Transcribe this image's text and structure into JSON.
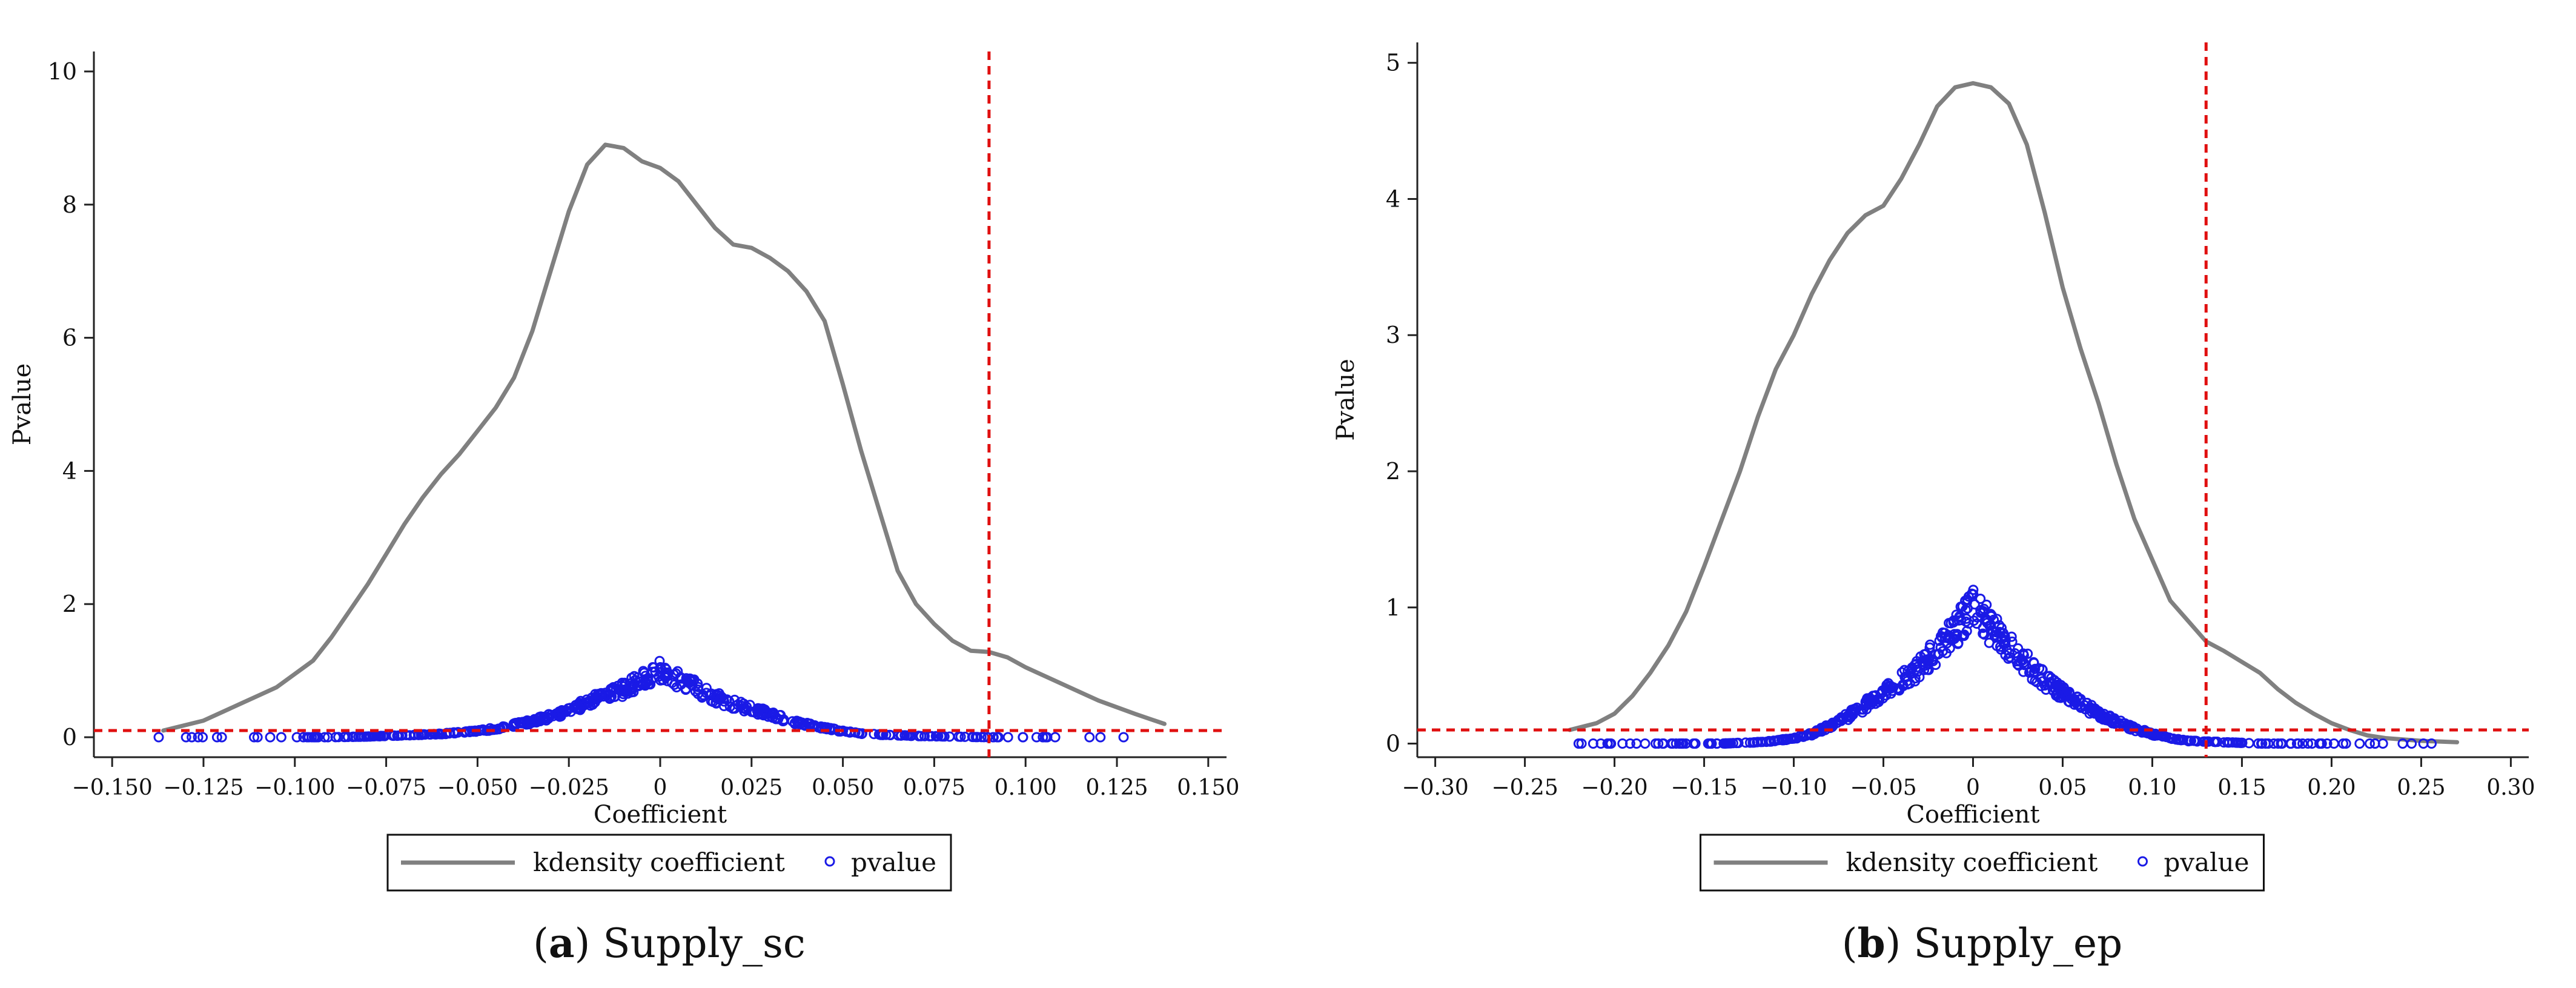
{
  "chart_data": [
    {
      "type": "line+scatter",
      "panel_letter": "a",
      "panel_name": " Supply_sc",
      "xlabel": "Coefficient",
      "ylabel": "Pvalue",
      "xlim": [
        -0.155,
        0.155
      ],
      "ylim": [
        -0.3,
        10.3
      ],
      "x_ticks": [
        -0.15,
        -0.125,
        -0.1,
        -0.075,
        -0.05,
        -0.025,
        0,
        0.025,
        0.05,
        0.075,
        0.1,
        0.125,
        0.15
      ],
      "x_tick_labels": [
        "−0.150",
        "−0.125",
        "−0.100",
        "−0.075",
        "−0.050",
        "−0.025",
        "0",
        "0.025",
        "0.050",
        "0.075",
        "0.100",
        "0.125",
        "0.150"
      ],
      "y_ticks": [
        0,
        2,
        4,
        6,
        8,
        10
      ],
      "y_tick_labels": [
        "0",
        "2",
        "4",
        "6",
        "8",
        "10"
      ],
      "ref_vline_x": 0.09,
      "ref_hline_y": 0.1,
      "kdensity": {
        "x": [
          -0.136,
          -0.125,
          -0.115,
          -0.105,
          -0.1,
          -0.095,
          -0.09,
          -0.085,
          -0.08,
          -0.075,
          -0.07,
          -0.065,
          -0.06,
          -0.055,
          -0.05,
          -0.045,
          -0.04,
          -0.035,
          -0.03,
          -0.025,
          -0.02,
          -0.015,
          -0.01,
          -0.005,
          0,
          0.005,
          0.01,
          0.015,
          0.02,
          0.025,
          0.03,
          0.035,
          0.04,
          0.045,
          0.05,
          0.055,
          0.06,
          0.065,
          0.07,
          0.075,
          0.08,
          0.085,
          0.09,
          0.095,
          0.1,
          0.11,
          0.12,
          0.13,
          0.138
        ],
        "y": [
          0.1,
          0.25,
          0.5,
          0.75,
          0.95,
          1.15,
          1.5,
          1.9,
          2.3,
          2.75,
          3.2,
          3.6,
          3.95,
          4.25,
          4.6,
          4.95,
          5.4,
          6.1,
          7.0,
          7.9,
          8.6,
          8.9,
          8.85,
          8.65,
          8.55,
          8.35,
          8.0,
          7.65,
          7.4,
          7.35,
          7.2,
          7.0,
          6.7,
          6.25,
          5.3,
          4.3,
          3.4,
          2.5,
          2.0,
          1.7,
          1.45,
          1.3,
          1.28,
          1.2,
          1.05,
          0.8,
          0.55,
          0.35,
          0.2
        ]
      },
      "pvalue_fit": {
        "x": [
          -0.138,
          -0.115,
          -0.1,
          -0.09,
          -0.08,
          -0.075,
          -0.07,
          -0.065,
          -0.06,
          -0.055,
          -0.05,
          -0.045,
          -0.04,
          -0.035,
          -0.03,
          -0.025,
          -0.02,
          -0.015,
          -0.01,
          -0.005,
          0,
          0.005,
          0.01,
          0.015,
          0.02,
          0.025,
          0.03,
          0.035,
          0.04,
          0.045,
          0.05,
          0.055,
          0.06,
          0.065,
          0.07,
          0.08,
          0.09,
          0.1,
          0.115,
          0.138
        ],
        "y": [
          0,
          0,
          0,
          0,
          0.01,
          0.02,
          0.03,
          0.04,
          0.05,
          0.07,
          0.09,
          0.13,
          0.18,
          0.24,
          0.31,
          0.4,
          0.52,
          0.62,
          0.72,
          0.86,
          1.0,
          0.86,
          0.74,
          0.6,
          0.5,
          0.43,
          0.34,
          0.26,
          0.19,
          0.14,
          0.09,
          0.06,
          0.04,
          0.03,
          0.02,
          0.01,
          0,
          0,
          0,
          0
        ]
      },
      "legend": {
        "line_label": "kdensity coefficient",
        "marker_label": "pvalue"
      },
      "caption": {
        "letter": "a",
        "text": " Supply_sc"
      }
    },
    {
      "type": "line+scatter",
      "panel_letter": "b",
      "panel_name": " Supply_ep",
      "xlabel": "Coefficient",
      "ylabel": "Pvalue",
      "xlim": [
        -0.31,
        0.31
      ],
      "ylim": [
        -0.1,
        5.15
      ],
      "x_ticks": [
        -0.3,
        -0.25,
        -0.2,
        -0.15,
        -0.1,
        -0.05,
        0,
        0.05,
        0.1,
        0.15,
        0.2,
        0.25,
        0.3
      ],
      "x_tick_labels": [
        "−0.30",
        "−0.25",
        "−0.20",
        "−0.15",
        "−0.10",
        "−0.05",
        "0",
        "0.05",
        "0.10",
        "0.15",
        "0.20",
        "0.25",
        "0.30"
      ],
      "y_ticks": [
        0,
        1,
        2,
        3,
        4,
        5
      ],
      "y_tick_labels": [
        "0",
        "1",
        "2",
        "3",
        "4",
        "5"
      ],
      "ref_vline_x": 0.13,
      "ref_hline_y": 0.1,
      "kdensity": {
        "x": [
          -0.225,
          -0.21,
          -0.2,
          -0.19,
          -0.18,
          -0.17,
          -0.16,
          -0.15,
          -0.14,
          -0.13,
          -0.12,
          -0.11,
          -0.1,
          -0.09,
          -0.08,
          -0.07,
          -0.06,
          -0.05,
          -0.04,
          -0.03,
          -0.02,
          -0.01,
          0,
          0.01,
          0.02,
          0.03,
          0.04,
          0.05,
          0.06,
          0.07,
          0.08,
          0.09,
          0.1,
          0.11,
          0.12,
          0.13,
          0.14,
          0.15,
          0.16,
          0.17,
          0.18,
          0.19,
          0.2,
          0.21,
          0.22,
          0.23,
          0.25,
          0.27
        ],
        "y": [
          0.1,
          0.15,
          0.22,
          0.35,
          0.52,
          0.72,
          0.97,
          1.3,
          1.65,
          2.0,
          2.4,
          2.75,
          3.0,
          3.3,
          3.55,
          3.75,
          3.88,
          3.95,
          4.15,
          4.4,
          4.68,
          4.82,
          4.85,
          4.82,
          4.7,
          4.4,
          3.9,
          3.35,
          2.9,
          2.5,
          2.05,
          1.65,
          1.35,
          1.05,
          0.9,
          0.75,
          0.68,
          0.6,
          0.52,
          0.4,
          0.3,
          0.22,
          0.15,
          0.1,
          0.06,
          0.04,
          0.02,
          0.01
        ]
      },
      "pvalue_fit": {
        "x": [
          -0.22,
          -0.2,
          -0.16,
          -0.14,
          -0.12,
          -0.11,
          -0.1,
          -0.09,
          -0.08,
          -0.07,
          -0.06,
          -0.05,
          -0.04,
          -0.03,
          -0.02,
          -0.01,
          0,
          0.01,
          0.02,
          0.03,
          0.04,
          0.05,
          0.06,
          0.07,
          0.08,
          0.09,
          0.1,
          0.11,
          0.12,
          0.14,
          0.16,
          0.2,
          0.23,
          0.27
        ],
        "y": [
          0,
          0,
          0,
          0,
          0.01,
          0.02,
          0.04,
          0.07,
          0.13,
          0.2,
          0.28,
          0.38,
          0.46,
          0.56,
          0.68,
          0.83,
          1.0,
          0.85,
          0.72,
          0.58,
          0.46,
          0.37,
          0.29,
          0.22,
          0.16,
          0.11,
          0.07,
          0.04,
          0.02,
          0.01,
          0,
          0,
          0,
          0
        ]
      },
      "legend": {
        "line_label": "kdensity coefficient",
        "marker_label": "pvalue"
      },
      "caption": {
        "letter": "b",
        "text": " Supply_ep"
      }
    }
  ],
  "colors": {
    "kdensity_line": "#808080",
    "pvalue_marker": "#1a1ae6",
    "reference_line": "#e01010",
    "axis": "#222222",
    "legend_border": "#111111"
  }
}
